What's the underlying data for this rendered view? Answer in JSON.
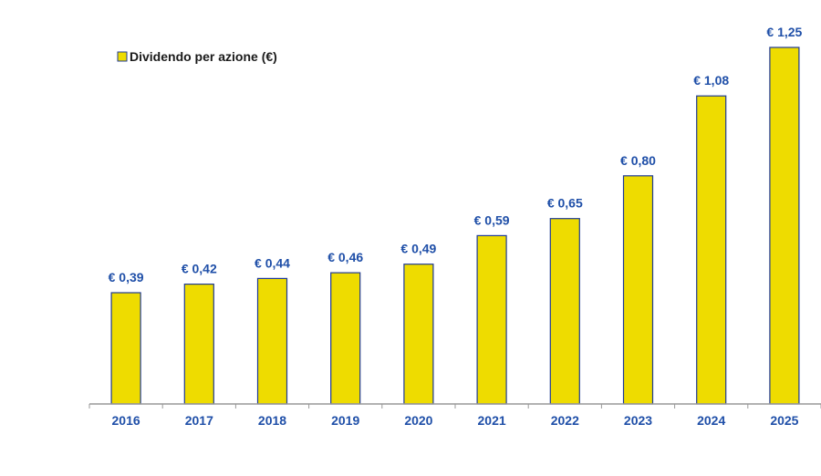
{
  "chart_data": {
    "type": "bar",
    "title": "",
    "xlabel": "",
    "ylabel": "",
    "categories": [
      "2016",
      "2017",
      "2018",
      "2019",
      "2020",
      "2021",
      "2022",
      "2023",
      "2024",
      "2025"
    ],
    "series": [
      {
        "name": "Dividendo per azione (€)",
        "values": [
          0.39,
          0.42,
          0.44,
          0.46,
          0.49,
          0.59,
          0.65,
          0.8,
          1.08,
          1.25
        ]
      }
    ],
    "data_labels": [
      "€ 0,39",
      "€ 0,42",
      "€ 0,44",
      "€ 0,46",
      "€ 0,49",
      "€ 0,59",
      "€ 0,65",
      "€ 0,80",
      "€ 1,08",
      "€ 1,25"
    ],
    "ylim": [
      0,
      1.25
    ],
    "grid": false,
    "legend_placement": "top-left",
    "colors": {
      "bar_fill": "#EEDC00",
      "bar_stroke": "#1F3A93",
      "label_color": "#1F4FA8",
      "axis_color": "#999999"
    }
  }
}
